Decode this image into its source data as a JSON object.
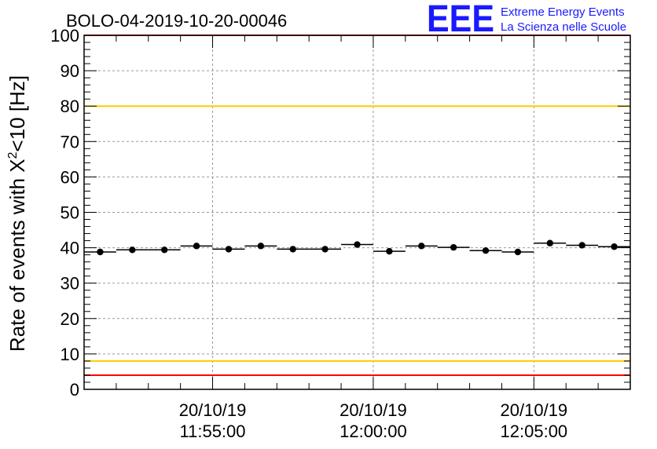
{
  "header": {
    "title": "BOLO-04-2019-10-20-00046",
    "logo_text": "EEE",
    "logo_line1": "Extreme Energy Events",
    "logo_line2": "La Scienza nelle Scuole",
    "logo_color": "#1a1aff"
  },
  "chart_data": {
    "type": "scatter",
    "title": "BOLO-04-2019-10-20-00046",
    "ylabel_main": "Rate of events with X",
    "ylabel_sup": "2",
    "ylabel_tail": "<10 [Hz]",
    "ylim": [
      0,
      100
    ],
    "yticks": [
      "0",
      "10",
      "20",
      "30",
      "40",
      "50",
      "60",
      "70",
      "80",
      "90",
      "100"
    ],
    "xlim": [
      "11:51:00",
      "12:08:00"
    ],
    "xticks": [
      {
        "time": "11:55:00",
        "date": "20/10/19"
      },
      {
        "time": "12:00:00",
        "date": "20/10/19"
      },
      {
        "time": "12:05:00",
        "date": "20/10/19"
      }
    ],
    "grid": true,
    "bin_width_s": 60,
    "points": [
      {
        "x": "11:51:30",
        "y": 38.8
      },
      {
        "x": "11:52:30",
        "y": 39.4
      },
      {
        "x": "11:53:30",
        "y": 39.4
      },
      {
        "x": "11:54:30",
        "y": 40.5
      },
      {
        "x": "11:55:30",
        "y": 39.6
      },
      {
        "x": "11:56:30",
        "y": 40.5
      },
      {
        "x": "11:57:30",
        "y": 39.6
      },
      {
        "x": "11:58:30",
        "y": 39.6
      },
      {
        "x": "11:59:30",
        "y": 40.9
      },
      {
        "x": "12:00:30",
        "y": 39.0
      },
      {
        "x": "12:01:30",
        "y": 40.5
      },
      {
        "x": "12:02:30",
        "y": 40.1
      },
      {
        "x": "12:03:30",
        "y": 39.2
      },
      {
        "x": "12:04:30",
        "y": 38.8
      },
      {
        "x": "12:05:30",
        "y": 41.3
      },
      {
        "x": "12:06:30",
        "y": 40.7
      },
      {
        "x": "12:07:30",
        "y": 40.3
      }
    ],
    "reference_lines": [
      {
        "y": 100,
        "color": "#ff0000"
      },
      {
        "y": 80,
        "color": "#ffcc00"
      },
      {
        "y": 8,
        "color": "#ffcc00"
      },
      {
        "y": 4,
        "color": "#ff0000"
      }
    ]
  }
}
